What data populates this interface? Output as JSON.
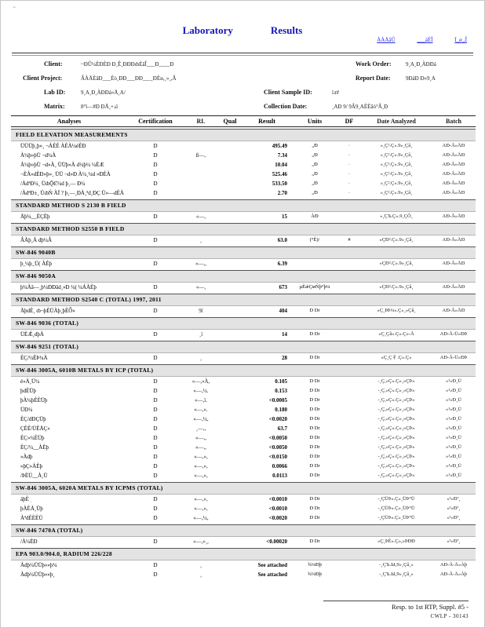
{
  "page": {
    "corner_mark": "¨",
    "title_word1": "Laboratory",
    "title_word2": "Results",
    "links": [
      "ÀÀÅâṸ",
      "___áÈÎ",
      "Ï_ø¸,Î"
    ]
  },
  "header": {
    "client_label": "Client:",
    "client_value": "~ÐÛ¼ÈÐÈÐ Ð¸Ê¸ÐÐÐȸÈâÎ___Ð____Ð",
    "work_order_label": "Work Order:",
    "work_order_value": "9¸A¸Ð¸ÀÐÐá",
    "project_label": "Client Project:",
    "project_value": "ÂÀÅÈâÐ___Èò¸ÐÐ___ÐÐ___¸ÐÈи,¸»¸,Â",
    "report_date_label": "Report Date:",
    "report_date_value": "9ÐáÐ Ð»9¸A",
    "lab_id_label": "Lab ID:",
    "lab_id_value": "9¸A¸Ð¸ÀÐÐá»Å¸A/",
    "sample_id_label": "Client Sample ID:",
    "sample_id_value": "ïл#",
    "matrix_label": "Matrix:",
    "matrix_value": "8°ï—#Ð ÐÃ¸+ذï",
    "collection_label": "Collection Date:",
    "collection_value": "¸AÐ 9/ 9Â9¸AÈÈâò°Â¸Ð"
  },
  "table": {
    "columns": [
      "Analyses",
      "Certification",
      "RL",
      "Qual",
      "Result",
      "Units",
      "DF",
      "Date Analyzed",
      "Batch"
    ],
    "sections": [
      {
        "title": "FIELD ELEVATION MEASUREMENTS",
        "rows": [
          {
            "analyte": "ÜÜÜþ¸þ»¸ ¬ÀÈÈ ÀÈÀ¼éÈÐ",
            "cert": "D",
            "rl": "",
            "qual": "",
            "result": "495.49",
            "units": "„Ð",
            "df": "·",
            "date": "»¸Ç².Ç».9»¸Çâ¸",
            "batch": "AÐ-Å»ÄÐ"
          },
          {
            "analyte": "À¼þ»þÜ ¬d¼À",
            "cert": "D",
            "rl": "ß—,",
            "qual": "",
            "result": "7.34",
            "units": "„Ð",
            "df": "·",
            "date": "»¸Ç².Ç».9»¸Çâ¸",
            "batch": "AÐ-Å»ÄÐ"
          },
          {
            "analyte": "À¼þ»þÜ ¬d»À¸ ÜÜþ»À   d¼þ¼ ¼ÈÆ",
            "cert": "D",
            "rl": "",
            "qual": "",
            "result": "10.04",
            "units": "„Ð",
            "df": "·",
            "date": "»¸Ç².Ç».9»¸Çâ¸",
            "batch": "AÐ-Å»ÄÐ"
          },
          {
            "analyte": "¬ÈÀ»dÈÐ»þ»¸ ÜÜ ¬d»Ð   À¼¸¼d »ÐÈÀ",
            "cert": "D",
            "rl": "",
            "qual": "",
            "result": "525.46",
            "units": "„Ð",
            "df": "·",
            "date": "»¸Ç².Ç».9»¸Çâ¸",
            "batch": "AÐ-Å»ÄÐ"
          },
          {
            "analyte": "/ÀdªÐ¼¸ ÜȸǬȻ¼d þ¸— Ð¼",
            "cert": "D",
            "rl": "",
            "qual": "",
            "result": "533.50",
            "units": "„Ð",
            "df": "·",
            "date": "»¸Ç².Ç».9»¸Çâ¸",
            "batch": "AÐ-Å»ÄÐ"
          },
          {
            "analyte": "/ÀdªÐ±¸ ÜȸǸ ÀÏ ?  þ¸—¸ÐÀ¸ªd¸ÐÇ Ü»—dÈÀ",
            "cert": "D",
            "rl": "",
            "qual": "",
            "result": "2.70",
            "units": "„Ð",
            "df": "·",
            "date": "»¸Ç².Ç».9»¸Çâ¸",
            "batch": "AÐ-Å»ÄÐ"
          }
        ]
      },
      {
        "title": "STANDARD METHOD S 2130 B FIELD",
        "rows": [
          {
            "analyte": "Äþ¼__ÈÇÈþ",
            "cert": "D",
            "rl": "«—,",
            "qual": "",
            "result": "15",
            "units": "ÀÐ",
            "df": "",
            "date": "»¸ÇЪ.Ç».9¸ÇÔ¸",
            "batch": "AÐ-Å»ÄÐ"
          }
        ]
      },
      {
        "title": "STANDARD METHOD S2550 B FIELD",
        "rows": [
          {
            "analyte": "ÂÀþ¸À dþ¼Â",
            "cert": "D",
            "rl": "¸",
            "qual": "",
            "result": "63.0",
            "units": "(°È)/",
            "df": "#",
            "date": "»ÇÐ².Ç».9»¸Çâ¸",
            "batch": "AÐ-Å»ÄÐ"
          }
        ]
      },
      {
        "title": "SW-846 9040B",
        "rows": [
          {
            "analyte": "þ¸¼þ_Ü( ÀÈþ",
            "cert": "D",
            "rl": "«—,,",
            "qual": "",
            "result": "6.39",
            "units": "",
            "df": "",
            "date": "»ÇÐ².Ç».9»¸Çâ¸",
            "batch": "AÐ-Å»ÄÐ"
          }
        ]
      },
      {
        "title": "SW-846 9050A",
        "rows": [
          {
            "analyte": "þ¼Àâ—¸þ¼ÐÐâd¸»Ð ¼( ¼ÁÀÈþ",
            "cert": "D",
            "rl": "«—,",
            "qual": "",
            "result": "673",
            "units": "µÈǽÇмǸþ°þ¼",
            "df": "",
            "date": "»ÇÐ².Ç».9»¸Çâ¸",
            "batch": "AÐ-Å»ÄÐ"
          }
        ]
      },
      {
        "title": "STANDARD METHOD S2540 C (TOTAL) 1997, 2011",
        "rows": [
          {
            "analyte": "ÄþdÈ¸ ȸ¬þÈÜÀþ¸þÈȬ»",
            "cert": "D",
            "rl": "9ï",
            "qual": "",
            "result": "404",
            "units": "D Dr",
            "df": "",
            "date": "»Ç¸ÞÞ¼».Ç»¸»Çâ¸",
            "batch": "AÐ-Å»ÄÐ"
          }
        ]
      },
      {
        "title": "SW-846 9036 (TOTAL)",
        "rows": [
          {
            "analyte": "ÜÈǼ¸dþÀ",
            "cert": "D",
            "rl": "¸ï",
            "qual": "",
            "result": "14",
            "units": "D Dr",
            "df": "",
            "date": "»Ç¸Çâ».Ç».Ç»-Å",
            "batch": "AÐ-Å-Ü»ÐÞ"
          }
        ]
      },
      {
        "title": "SW-846 9251 (TOTAL)",
        "rows": [
          {
            "analyte": "ÈÇ/¼ÈÞ¼À",
            "cert": "D",
            "rl": "¸",
            "qual": "",
            "result": "28",
            "units": "D Dr",
            "df": "",
            "date": "»Ç¸Ç⼻.Ç».Ç»",
            "batch": "AÐ-Å-Ü»ÐÞ"
          }
        ]
      },
      {
        "title": "SW-846 3005A, 6010B METALS BY ICP (TOTAL)",
        "rows": [
          {
            "analyte": "é»À¸Ü¼",
            "cert": "D",
            "rl": "«—,»À,",
            "qual": "",
            "result": "0.105",
            "units": "D Dr",
            "df": "",
            "date": "-¸Ç,»Ç».Ç»¸»ÇÞ»",
            "batch": "»¹»Ð¸Ü"
          },
          {
            "analyte": "þdÈÜþ",
            "cert": "D",
            "rl": "«—,¼.",
            "qual": "",
            "result": "0.153",
            "units": "D Dr",
            "df": "",
            "date": "-¸Ç,»Ç».Ç»¸»ÇÞ»",
            "batch": "»¹»Ð¸Ü"
          },
          {
            "analyte": "þÀ¼þÈÈÜþ",
            "cert": "D",
            "rl": "«—,ï.",
            "qual": "",
            "result": "<0.0005",
            "units": "D Dr",
            "df": "",
            "date": "-¸Ç,»Ç».Ç»¸»ÇÞ»",
            "batch": "»¹»Ð¸Ü"
          },
          {
            "analyte": "ÜÐ¼",
            "cert": "D",
            "rl": "«—,».",
            "qual": "",
            "result": "0.180",
            "units": "D Dr",
            "df": "",
            "date": "-¸Ç,»Ç».Ç»¸»ÇÞ»",
            "batch": "»¹»Ð¸Ü"
          },
          {
            "analyte": "ÈÇ/dÐÇÜþ",
            "cert": "D",
            "rl": "«—,¼,",
            "qual": "",
            "result": "<0.0020",
            "units": "D Dr",
            "df": "",
            "date": "-¸Ç,»Ç».Ç»¸»ÇÞ»",
            "batch": "»¹»Ð¸Ü"
          },
          {
            "analyte": "ÇÈÈ/ÜÈÅÇ»",
            "cert": "D",
            "rl": "¸—,,",
            "qual": "",
            "result": "63.7",
            "units": "D Dr",
            "df": "",
            "date": "-¸Ç,»Ç».Ç»¸»ÇÞ»",
            "batch": "»¹»Ð¸Ü"
          },
          {
            "analyte": "ÈÇ»¼ÈÜþ",
            "cert": "D",
            "rl": "«—,,",
            "qual": "",
            "result": "<0.0050",
            "units": "D Dr",
            "df": "",
            "date": "-¸Ç,»Ç».Ç»¸»ÇÞ»",
            "batch": "»¹»Ð¸Ü"
          },
          {
            "analyte": "ÈÇ/¼__ÀÈþ",
            "cert": "D",
            "rl": "«—,,",
            "qual": "",
            "result": "<0.0050",
            "units": "D Dr",
            "df": "",
            "date": "-¸Ç,»Ç».Ç»¸»ÇÞ»",
            "batch": "»¹»Ð¸Ü"
          },
          {
            "analyte": "»Àdþ",
            "cert": "D",
            "rl": "«—,»,",
            "qual": "",
            "result": "<0.0150",
            "units": "D Dr",
            "df": "",
            "date": "-¸Ç,»Ç».Ç»¸»ÇÞ»",
            "batch": "»¹»Ð¸Ü"
          },
          {
            "analyte": "»þÇ»ÀÈþ",
            "cert": "D",
            "rl": "«—,»,",
            "qual": "",
            "result": "0.0066",
            "units": "D Dr",
            "df": "",
            "date": "-¸Ç,»Ç».Ç»¸»ÇÞ»",
            "batch": "»¹»Ð¸Ü"
          },
          {
            "analyte": "/ÞÈÜ__À¸Ü",
            "cert": "D",
            "rl": "«—,»,",
            "qual": "",
            "result": "0.0113",
            "units": "D Dr",
            "df": "",
            "date": "-¸Ç,»Ç».Ç»¸»ÇÞ»",
            "batch": "»¹»Ð¸Ü"
          }
        ]
      },
      {
        "title": "SW-846 3005A, 6020A METALS BY ICPMS (TOTAL)",
        "rows": [
          {
            "analyte": "áþÈܼ",
            "cert": "D",
            "rl": "«—,»,",
            "qual": "",
            "result": "<0.0010",
            "units": "D Dr",
            "df": "",
            "date": "-¸ÇÜÞ».Ç»¸ÜÞ°Ü",
            "batch": "»¹»Ðª¸"
          },
          {
            "analyte": "þÀÈÀ¸Üþ",
            "cert": "D",
            "rl": "«—,»,",
            "qual": "",
            "result": "<0.0010",
            "units": "D Dr",
            "df": "",
            "date": "-¸ÇÜÞ».Ç»¸ÜÞ°Ü",
            "batch": "»¹»Ðª¸"
          },
          {
            "analyte": "ÀªdÈÈÈÜ",
            "cert": "D",
            "rl": "«—,¼,",
            "qual": "",
            "result": "<0.0020",
            "units": "D Dr",
            "df": "",
            "date": "-¸ÇÜÞ».Ç»¸ÜÞ°Ü",
            "batch": "»¹»Ðª¸"
          }
        ]
      },
      {
        "title": "SW-846 7470A (TOTAL)",
        "rows": [
          {
            "analyte": "/À¼ÈÐ",
            "cert": "D",
            "rl": "«—,»¸,",
            "qual": "",
            "result": "<0.00020",
            "units": "D Dr",
            "df": "",
            "date": "»Ç¸ÞÈ».Ç»,»ÞÐÐ",
            "batch": "»¹»Ðª¸"
          }
        ]
      },
      {
        "title": "EPA 903.0/904.0, RADIUM 226/228",
        "rows": [
          {
            "analyte": "Àdþ¼ÜÜþ»»þ¼",
            "cert": "D",
            "rl": "¸",
            "qual": "",
            "result": "See attached",
            "units": "¾¼Ðþ",
            "df": "",
            "date": "-¸ÇЪ.Ы,9»¸Çâ¸»",
            "batch": "AÐ-Å-Ä»Àþ"
          },
          {
            "analyte": "Àdþ¼ÜÜþ»»þ¸",
            "cert": "D",
            "rl": "¸",
            "qual": "",
            "result": "See attached",
            "units": "¾¼Ðþ",
            "df": "",
            "date": "-¸ÇЪ.Ы,9»¸Çâ¸»",
            "batch": "AÐ-Å-Ä»Àþ"
          }
        ]
      }
    ]
  },
  "footer": {
    "line1": "Resp. to 1st RTP, Suppl. #5 -",
    "line2": "CWLP - 30143"
  }
}
